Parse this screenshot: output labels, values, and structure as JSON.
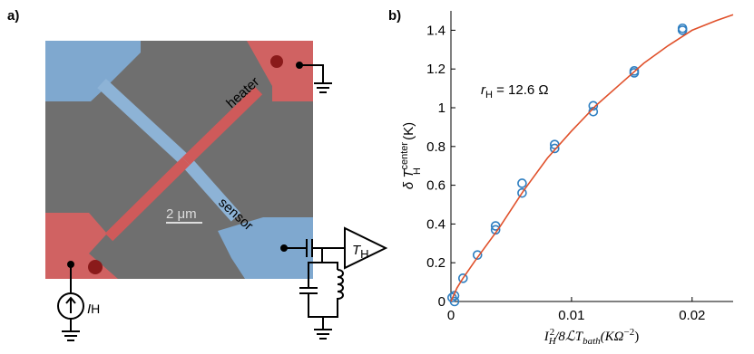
{
  "panel_a": {
    "label": "a)",
    "heater": "heater",
    "sensor": "sensor",
    "scale_bar": "2 μm",
    "current_source": {
      "symbol": "I",
      "subscript": "H"
    },
    "amplifier": {
      "symbol": "T",
      "subscript": "H"
    }
  },
  "chart_data": {
    "type": "scatter",
    "panel_label": "b)",
    "annotation": {
      "symbol": "r",
      "subscript": "H",
      "text": " = 12.6 Ω"
    },
    "ylabel": {
      "prefix": "δ T",
      "superscript": "center",
      "subscript": "H",
      "unit": " (K)"
    },
    "xlabel": {
      "main": "I",
      "sub": "H",
      "sup": "2",
      "mid": "/8ℒT",
      "sub2": "bath",
      "unit": "(KΩ",
      "exp": "−2",
      "close": ")"
    },
    "xlim": [
      0,
      0.0234
    ],
    "ylim": [
      0,
      1.5
    ],
    "xticks": [
      0,
      0.01,
      0.02
    ],
    "yticks": [
      0,
      0.2,
      0.4,
      0.6,
      0.8,
      1,
      1.2,
      1.4
    ],
    "series": [
      {
        "mode": "markers",
        "color": "#2f7fc1",
        "x": [
          0.0001,
          0.0003,
          0.0003,
          0.001,
          0.0022,
          0.0037,
          0.0037,
          0.0059,
          0.0059,
          0.0086,
          0.0086,
          0.0118,
          0.0118,
          0.0152,
          0.0152,
          0.0192,
          0.0192
        ],
        "values": [
          0.02,
          0.0,
          0.03,
          0.12,
          0.24,
          0.37,
          0.39,
          0.56,
          0.61,
          0.79,
          0.81,
          0.98,
          1.01,
          1.18,
          1.19,
          1.4,
          1.41
        ]
      },
      {
        "mode": "line",
        "color": "#e0502a",
        "x": [
          0,
          0.0005,
          0.001,
          0.002,
          0.004,
          0.006,
          0.008,
          0.01,
          0.012,
          0.014,
          0.016,
          0.018,
          0.02,
          0.022,
          0.0234
        ],
        "values": [
          0,
          0.07,
          0.12,
          0.21,
          0.38,
          0.57,
          0.74,
          0.88,
          1.01,
          1.12,
          1.23,
          1.32,
          1.4,
          1.45,
          1.48
        ]
      }
    ]
  }
}
